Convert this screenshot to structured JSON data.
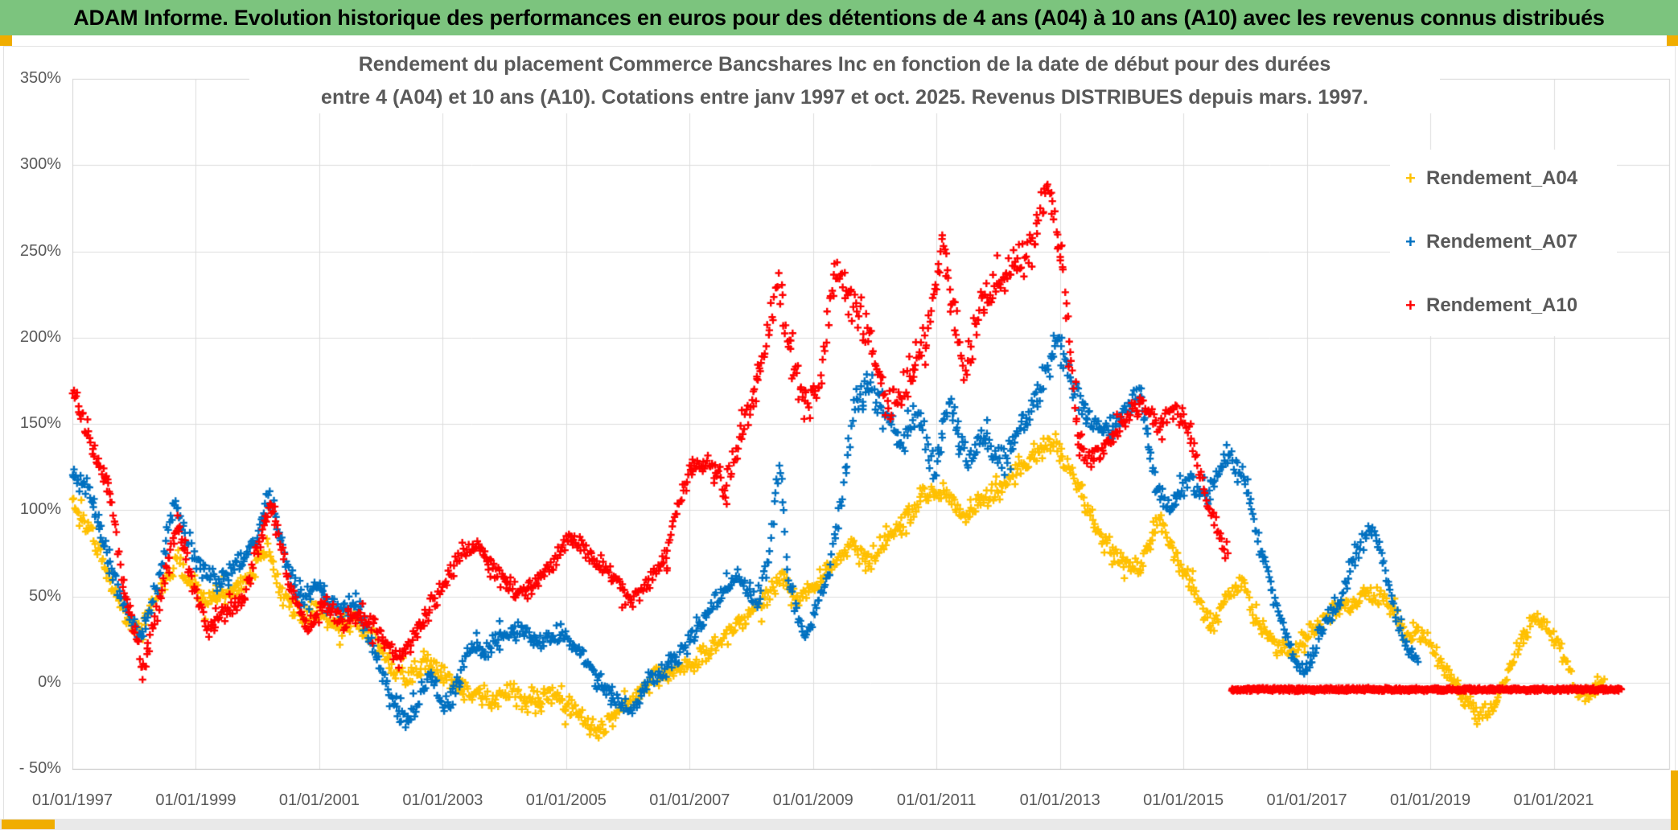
{
  "header": {
    "text": "ADAM Informe. Evolution historique des performances en euros pour des détentions de 4 ans (A04) à 10 ans (A10) avec les revenus connus distribués",
    "bg_color": "#7cc47e",
    "text_color": "#000000"
  },
  "accents": {
    "gold": "#f0ad00"
  },
  "chart_data": {
    "type": "scatter",
    "marker": "plus-cross",
    "title_line1": "Rendement du placement Commerce Bancshares Inc en fonction de la date de début pour des durées",
    "title_line2": "entre 4 (A04) et 10 ans (A10). Cotations entre janv 1997 et oct. 2025. Revenus DISTRIBUES depuis mars. 1997.",
    "title_color": "#595959",
    "grid_color": "#dcdcdc",
    "frame_color": "#d2d2d2",
    "axis_line_color": "#bfbfbf",
    "x_axis": {
      "start": 1997.0,
      "end": 2022.87,
      "ticks": [
        {
          "label": "01/01/1997",
          "year": 1997
        },
        {
          "label": "01/01/1999",
          "year": 1999
        },
        {
          "label": "01/01/2001",
          "year": 2001
        },
        {
          "label": "01/01/2003",
          "year": 2003
        },
        {
          "label": "01/01/2005",
          "year": 2005
        },
        {
          "label": "01/01/2007",
          "year": 2007
        },
        {
          "label": "01/01/2009",
          "year": 2009
        },
        {
          "label": "01/01/2011",
          "year": 2011
        },
        {
          "label": "01/01/2013",
          "year": 2013
        },
        {
          "label": "01/01/2015",
          "year": 2015
        },
        {
          "label": "01/01/2017",
          "year": 2017
        },
        {
          "label": "01/01/2019",
          "year": 2019
        },
        {
          "label": "01/01/2021",
          "year": 2021
        }
      ]
    },
    "y_axis": {
      "min": -50,
      "max": 350,
      "unit": "%",
      "ticks": [
        {
          "label": "350%",
          "value": 350
        },
        {
          "label": "300%",
          "value": 300
        },
        {
          "label": "250%",
          "value": 250
        },
        {
          "label": "200%",
          "value": 200
        },
        {
          "label": "150%",
          "value": 150
        },
        {
          "label": "100%",
          "value": 100
        },
        {
          "label": "50%",
          "value": 50
        },
        {
          "label": "0%",
          "value": 0
        },
        {
          "label": "- 50%",
          "value": -50
        }
      ]
    },
    "legend": [
      {
        "label": "Rendement_A04",
        "color": "#FFC000"
      },
      {
        "label": "Rendement_A07",
        "color": "#0070C0"
      },
      {
        "label": "Rendement_A10",
        "color": "#FF0000"
      }
    ],
    "series": [
      {
        "name": "Rendement_A04",
        "color": "#FFC000",
        "points": [
          [
            1997.0,
            103,
            9
          ],
          [
            1997.25,
            92
          ],
          [
            1997.5,
            70
          ],
          [
            1997.8,
            42
          ],
          [
            1998.1,
            28
          ],
          [
            1998.4,
            52
          ],
          [
            1998.7,
            72
          ],
          [
            1998.9,
            60
          ],
          [
            1999.2,
            48
          ],
          [
            1999.5,
            52
          ],
          [
            1999.8,
            58
          ],
          [
            2000.15,
            78
          ],
          [
            2000.4,
            52
          ],
          [
            2000.7,
            38
          ],
          [
            2001.0,
            42
          ],
          [
            2001.3,
            32
          ],
          [
            2001.6,
            36
          ],
          [
            2001.9,
            25
          ],
          [
            2002.2,
            8
          ],
          [
            2002.45,
            2
          ],
          [
            2002.7,
            15
          ],
          [
            2002.95,
            5
          ],
          [
            2003.2,
            0
          ],
          [
            2003.5,
            -6
          ],
          [
            2003.8,
            -10
          ],
          [
            2004.1,
            -5
          ],
          [
            2004.4,
            -12
          ],
          [
            2004.7,
            -6
          ],
          [
            2005.0,
            -12
          ],
          [
            2005.3,
            -22
          ],
          [
            2005.55,
            -28
          ],
          [
            2005.8,
            -18
          ],
          [
            2006.1,
            -8
          ],
          [
            2006.4,
            2
          ],
          [
            2006.7,
            6
          ],
          [
            2007.0,
            10
          ],
          [
            2007.3,
            18
          ],
          [
            2007.6,
            28
          ],
          [
            2007.9,
            38
          ],
          [
            2008.2,
            48
          ],
          [
            2008.5,
            62
          ],
          [
            2008.75,
            48
          ],
          [
            2009.0,
            55
          ],
          [
            2009.3,
            68
          ],
          [
            2009.6,
            80
          ],
          [
            2009.9,
            70
          ],
          [
            2010.2,
            82
          ],
          [
            2010.5,
            95
          ],
          [
            2010.8,
            108
          ],
          [
            2011.1,
            112
          ],
          [
            2011.4,
            96
          ],
          [
            2011.7,
            104
          ],
          [
            2012.0,
            112
          ],
          [
            2012.3,
            122
          ],
          [
            2012.6,
            132
          ],
          [
            2012.9,
            140
          ],
          [
            2013.1,
            128
          ],
          [
            2013.4,
            105
          ],
          [
            2013.7,
            82
          ],
          [
            2014.0,
            70
          ],
          [
            2014.3,
            65
          ],
          [
            2014.6,
            95
          ],
          [
            2014.9,
            72
          ],
          [
            2015.2,
            52
          ],
          [
            2015.45,
            32
          ],
          [
            2015.7,
            48
          ],
          [
            2015.95,
            58
          ],
          [
            2016.2,
            35
          ],
          [
            2016.5,
            22
          ],
          [
            2016.8,
            18
          ],
          [
            2017.1,
            32
          ],
          [
            2017.4,
            42
          ],
          [
            2017.7,
            45
          ],
          [
            2018.0,
            52
          ],
          [
            2018.3,
            48
          ],
          [
            2018.6,
            28
          ],
          [
            2018.9,
            30
          ],
          [
            2019.2,
            10
          ],
          [
            2019.5,
            -8
          ],
          [
            2019.8,
            -20
          ],
          [
            2020.0,
            -15
          ],
          [
            2020.2,
            0
          ],
          [
            2020.45,
            22
          ],
          [
            2020.7,
            38
          ],
          [
            2020.95,
            30
          ],
          [
            2021.2,
            12
          ],
          [
            2021.4,
            -8
          ],
          [
            2021.6,
            -4
          ],
          [
            2021.82,
            2
          ]
        ]
      },
      {
        "name": "Rendement_A07",
        "color": "#0070C0",
        "points": [
          [
            1997.0,
            120,
            8
          ],
          [
            1997.25,
            112
          ],
          [
            1997.5,
            82
          ],
          [
            1997.8,
            48
          ],
          [
            1998.1,
            26
          ],
          [
            1998.4,
            60
          ],
          [
            1998.65,
            105
          ],
          [
            1998.85,
            85
          ],
          [
            1999.1,
            65
          ],
          [
            1999.4,
            58
          ],
          [
            1999.7,
            70
          ],
          [
            2000.0,
            85
          ],
          [
            2000.2,
            112
          ],
          [
            2000.45,
            70
          ],
          [
            2000.7,
            48
          ],
          [
            2001.0,
            56
          ],
          [
            2001.3,
            42
          ],
          [
            2001.6,
            46
          ],
          [
            2001.9,
            18
          ],
          [
            2002.15,
            -8
          ],
          [
            2002.4,
            -24
          ],
          [
            2002.6,
            -12
          ],
          [
            2002.8,
            8
          ],
          [
            2003.0,
            -14
          ],
          [
            2003.2,
            -5
          ],
          [
            2003.45,
            22
          ],
          [
            2003.7,
            18
          ],
          [
            2004.0,
            26
          ],
          [
            2004.3,
            30
          ],
          [
            2004.6,
            22
          ],
          [
            2004.9,
            28
          ],
          [
            2005.2,
            20
          ],
          [
            2005.5,
            2
          ],
          [
            2005.8,
            -10
          ],
          [
            2006.05,
            -18
          ],
          [
            2006.3,
            0
          ],
          [
            2006.6,
            8
          ],
          [
            2006.9,
            18
          ],
          [
            2007.2,
            35
          ],
          [
            2007.5,
            52
          ],
          [
            2007.8,
            60
          ],
          [
            2008.1,
            45
          ],
          [
            2008.3,
            75
          ],
          [
            2008.45,
            130,
            10
          ],
          [
            2008.6,
            60
          ],
          [
            2008.85,
            28
          ],
          [
            2009.1,
            45
          ],
          [
            2009.3,
            70
          ],
          [
            2009.5,
            120,
            11
          ],
          [
            2009.7,
            165,
            11
          ],
          [
            2009.95,
            172,
            11
          ],
          [
            2010.2,
            155,
            11
          ],
          [
            2010.45,
            138,
            11
          ],
          [
            2010.7,
            158,
            11
          ],
          [
            2010.95,
            122,
            11
          ],
          [
            2011.2,
            162,
            11
          ],
          [
            2011.5,
            128,
            11
          ],
          [
            2011.8,
            142,
            11
          ],
          [
            2012.1,
            128,
            11
          ],
          [
            2012.4,
            148,
            11
          ],
          [
            2012.7,
            172,
            11
          ],
          [
            2012.95,
            198,
            11
          ],
          [
            2013.2,
            172,
            10
          ],
          [
            2013.5,
            150
          ],
          [
            2013.8,
            145
          ],
          [
            2014.1,
            160
          ],
          [
            2014.3,
            168
          ],
          [
            2014.55,
            115
          ],
          [
            2014.8,
            100
          ],
          [
            2015.1,
            118
          ],
          [
            2015.4,
            108
          ],
          [
            2015.7,
            132
          ],
          [
            2015.95,
            120
          ],
          [
            2016.2,
            85
          ],
          [
            2016.5,
            45
          ],
          [
            2016.8,
            12
          ],
          [
            2017.0,
            8
          ],
          [
            2017.2,
            28
          ],
          [
            2017.5,
            45
          ],
          [
            2017.8,
            75
          ],
          [
            2018.05,
            88
          ],
          [
            2018.25,
            70
          ],
          [
            2018.45,
            40
          ],
          [
            2018.65,
            18
          ],
          [
            2018.8,
            12
          ]
        ]
      },
      {
        "name": "Rendement_A10",
        "color": "#FF0000",
        "points": [
          [
            1997.0,
            168,
            9
          ],
          [
            1997.2,
            150,
            9
          ],
          [
            1997.4,
            128
          ],
          [
            1997.6,
            112
          ],
          [
            1997.8,
            62
          ],
          [
            1998.0,
            30
          ],
          [
            1998.15,
            8
          ],
          [
            1998.4,
            45
          ],
          [
            1998.7,
            92
          ],
          [
            1998.95,
            55
          ],
          [
            1999.2,
            32
          ],
          [
            1999.5,
            42
          ],
          [
            1999.8,
            48
          ],
          [
            2000.1,
            92
          ],
          [
            2000.25,
            102
          ],
          [
            2000.5,
            58
          ],
          [
            2000.8,
            32
          ],
          [
            2001.1,
            45
          ],
          [
            2001.4,
            35
          ],
          [
            2001.7,
            40
          ],
          [
            2002.0,
            28
          ],
          [
            2002.3,
            12
          ],
          [
            2002.55,
            28
          ],
          [
            2002.8,
            45
          ],
          [
            2003.0,
            55
          ],
          [
            2003.3,
            75
          ],
          [
            2003.6,
            78
          ],
          [
            2003.9,
            62
          ],
          [
            2004.2,
            52
          ],
          [
            2004.5,
            58
          ],
          [
            2004.8,
            70
          ],
          [
            2005.1,
            85
          ],
          [
            2005.35,
            75
          ],
          [
            2005.6,
            68
          ],
          [
            2005.85,
            58
          ],
          [
            2006.0,
            48
          ],
          [
            2006.3,
            56
          ],
          [
            2006.6,
            72
          ],
          [
            2006.85,
            105
          ],
          [
            2007.0,
            122
          ],
          [
            2007.3,
            128,
            10
          ],
          [
            2007.6,
            115,
            10
          ],
          [
            2007.9,
            150,
            12
          ],
          [
            2008.2,
            188,
            13
          ],
          [
            2008.45,
            235,
            13
          ],
          [
            2008.6,
            195,
            13
          ],
          [
            2008.85,
            160,
            13
          ],
          [
            2009.1,
            172,
            13
          ],
          [
            2009.35,
            240,
            13
          ],
          [
            2009.6,
            222,
            13
          ],
          [
            2009.9,
            205,
            13
          ],
          [
            2010.2,
            158,
            13
          ],
          [
            2010.5,
            172,
            13
          ],
          [
            2010.8,
            195,
            13
          ],
          [
            2011.1,
            252,
            13
          ],
          [
            2011.45,
            180,
            13
          ],
          [
            2011.75,
            225,
            13
          ],
          [
            2012.0,
            228,
            13
          ],
          [
            2012.3,
            242,
            13
          ],
          [
            2012.6,
            255,
            13
          ],
          [
            2012.8,
            292,
            12
          ],
          [
            2013.0,
            252,
            12
          ],
          [
            2013.15,
            200,
            11
          ],
          [
            2013.3,
            140
          ],
          [
            2013.5,
            128
          ],
          [
            2013.7,
            135
          ],
          [
            2013.9,
            145
          ],
          [
            2014.1,
            155
          ],
          [
            2014.35,
            162
          ],
          [
            2014.6,
            148
          ],
          [
            2014.85,
            158
          ],
          [
            2015.05,
            150
          ],
          [
            2015.25,
            122
          ],
          [
            2015.45,
            98
          ],
          [
            2015.6,
            82
          ],
          [
            2015.72,
            75
          ]
        ],
        "flat_tail": {
          "from": 2015.78,
          "to": 2022.1,
          "value": -4
        }
      }
    ]
  }
}
